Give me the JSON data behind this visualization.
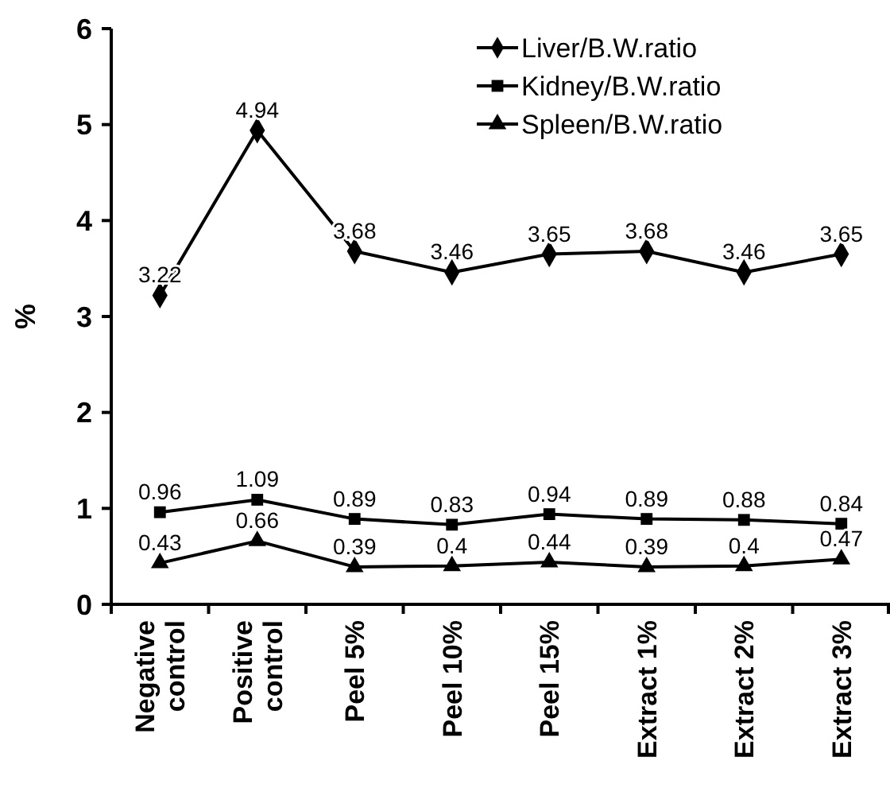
{
  "chart_data": {
    "type": "line",
    "ylabel": "%",
    "categories": [
      "Negative\ncontrol",
      "Positive\ncontrol",
      "Peel 5%",
      "Peel 10%",
      "Peel 15%",
      "Extract 1%",
      "Extract 2%",
      "Extract 3%"
    ],
    "series": [
      {
        "name": "Liver/B.W.ratio",
        "color": "#000000",
        "marker": "diamond",
        "values": [
          3.22,
          4.94,
          3.68,
          3.46,
          3.65,
          3.68,
          3.46,
          3.65
        ]
      },
      {
        "name": "Kidney/B.W.ratio",
        "color": "#000000",
        "marker": "square",
        "values": [
          0.96,
          1.09,
          0.89,
          0.83,
          0.94,
          0.89,
          0.88,
          0.84
        ]
      },
      {
        "name": "Spleen/B.W.ratio",
        "color": "#000000",
        "marker": "triangle",
        "values": [
          0.43,
          0.66,
          0.39,
          0.4,
          0.44,
          0.39,
          0.4,
          0.47
        ]
      }
    ],
    "ylim": [
      0,
      6
    ],
    "yticks": [
      0,
      1,
      2,
      3,
      4,
      5,
      6
    ],
    "grid": false,
    "legend": "top right",
    "data_labels": true,
    "line_style": "solid"
  }
}
